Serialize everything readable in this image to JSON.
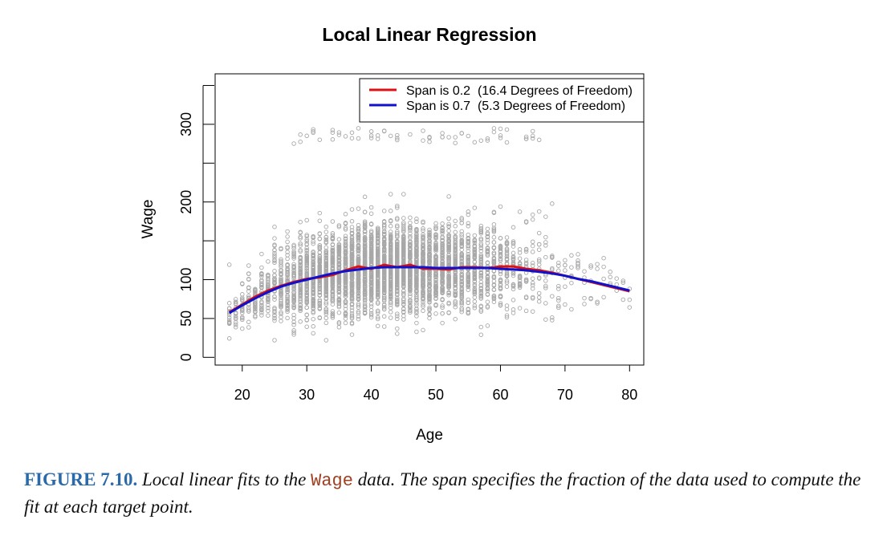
{
  "chart_data": {
    "type": "scatter",
    "title": "Local Linear Regression",
    "xlabel": "Age",
    "ylabel": "Wage",
    "xlim": [
      15.8,
      82.2
    ],
    "ylim": [
      -10,
      365
    ],
    "xticks": [
      20,
      30,
      40,
      50,
      60,
      70,
      80
    ],
    "yticks": [
      0,
      50,
      100,
      200,
      300
    ],
    "yminor_ticks": [
      150,
      250,
      350
    ],
    "grid": false,
    "legend_position": "top-right",
    "point_color": "#a8a8a8",
    "series": [
      {
        "name": "Span is 0.2  (16.4 Degrees of Freedom)",
        "color": "#dd1111",
        "x": [
          18,
          20,
          22,
          24,
          26,
          28,
          30,
          32,
          34,
          36,
          38,
          40,
          42,
          44,
          46,
          48,
          50,
          52,
          54,
          56,
          58,
          60,
          62,
          64,
          66,
          68,
          70,
          72,
          74,
          76,
          78,
          80
        ],
        "y": [
          58,
          68,
          78,
          86,
          92,
          97,
          101,
          103,
          106,
          112,
          117,
          114,
          119,
          116,
          119,
          114,
          114,
          113,
          116,
          116,
          115,
          117,
          117,
          114,
          112,
          109,
          105,
          101,
          97,
          93,
          89,
          85
        ]
      },
      {
        "name": "Span is 0.7  (5.3 Degrees of Freedom)",
        "color": "#1111cc",
        "x": [
          18,
          20,
          22,
          24,
          26,
          28,
          30,
          32,
          34,
          36,
          38,
          40,
          42,
          44,
          46,
          48,
          50,
          52,
          54,
          56,
          58,
          60,
          62,
          64,
          66,
          68,
          70,
          72,
          74,
          76,
          78,
          80
        ],
        "y": [
          57,
          67,
          76,
          84,
          91,
          96,
          100,
          104,
          108,
          111,
          113,
          115,
          116,
          116,
          116,
          116,
          115,
          115,
          115,
          115,
          115,
          114,
          113,
          112,
          110,
          108,
          105,
          101,
          98,
          94,
          90,
          86
        ]
      }
    ]
  },
  "caption": {
    "label": "FIGURE 7.10.",
    "text1": " Local linear fits to the ",
    "code": "Wage",
    "text2": " data. The span specifies the fraction of the data used to compute the fit at each target point."
  }
}
